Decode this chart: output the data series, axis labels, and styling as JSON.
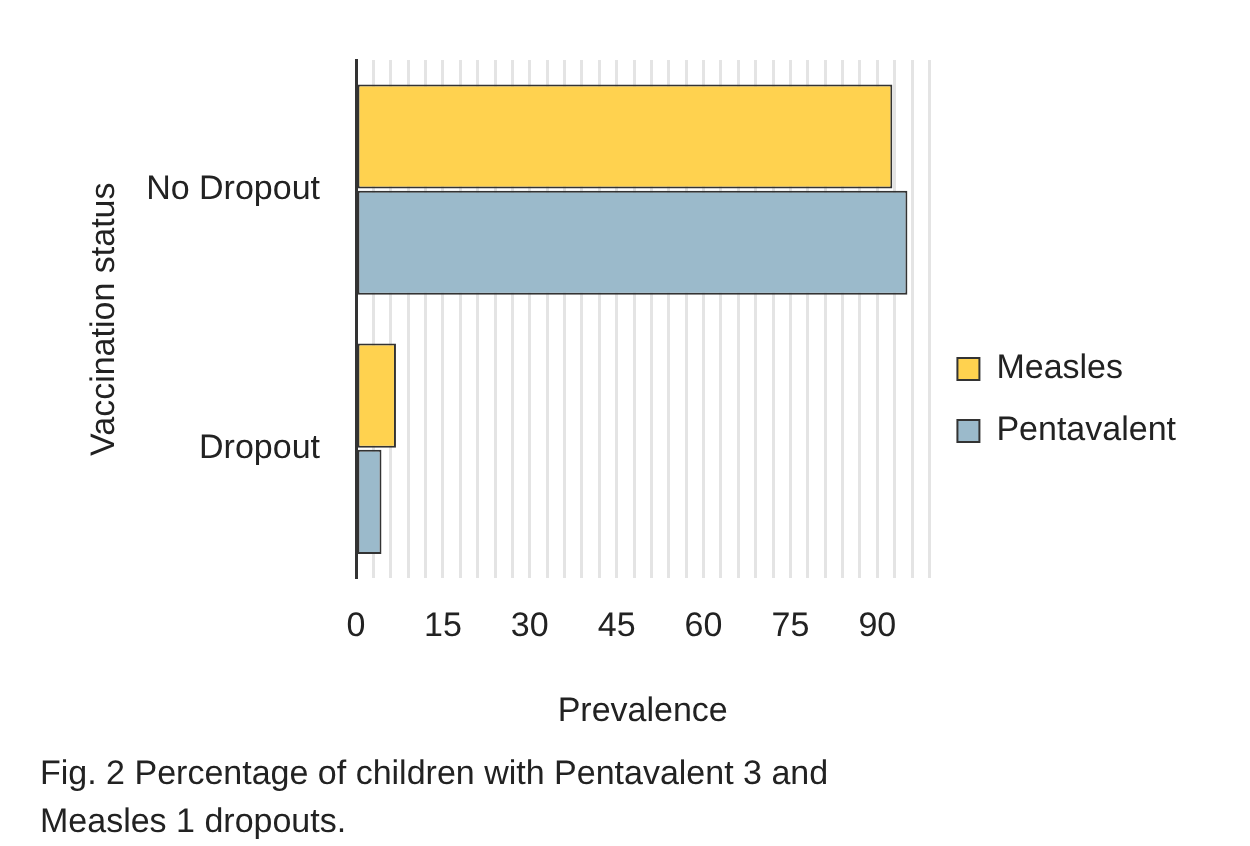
{
  "chart_data": {
    "type": "bar",
    "orientation": "horizontal",
    "xlabel": "Prevalence",
    "ylabel": "Vaccination status",
    "categories": [
      "No Dropout",
      "Dropout"
    ],
    "series": [
      {
        "name": "Measles",
        "color": "#ffd24f",
        "values": [
          92.6,
          6.9
        ]
      },
      {
        "name": "Pentavalent",
        "color": "#9bbacb",
        "values": [
          95.2,
          4.4
        ]
      }
    ],
    "xlim": [
      0,
      99
    ],
    "xticks": [
      0,
      {
        "value": 3,
        "label": null
      },
      {
        "value": 6,
        "label": null
      },
      {
        "value": 9,
        "label": null
      },
      {
        "value": 12,
        "label": null
      },
      15,
      {
        "value": 18,
        "label": null
      },
      {
        "value": 21,
        "label": null
      },
      {
        "value": 24,
        "label": null
      },
      {
        "value": 27,
        "label": null
      },
      30,
      {
        "value": 33,
        "label": null
      },
      {
        "value": 36,
        "label": null
      },
      {
        "value": 39,
        "label": null
      },
      {
        "value": 42,
        "label": null
      },
      45,
      {
        "value": 48,
        "label": null
      },
      {
        "value": 51,
        "label": null
      },
      {
        "value": 54,
        "label": null
      },
      {
        "value": 57,
        "label": null
      },
      60,
      {
        "value": 63,
        "label": null
      },
      {
        "value": 66,
        "label": null
      },
      {
        "value": 69,
        "label": null
      },
      {
        "value": 72,
        "label": null
      },
      75,
      {
        "value": 78,
        "label": null
      },
      {
        "value": 81,
        "label": null
      },
      {
        "value": 84,
        "label": null
      },
      {
        "value": 87,
        "label": null
      },
      90,
      {
        "value": 93,
        "label": null
      },
      {
        "value": 96,
        "label": null
      },
      {
        "value": 99,
        "label": null
      }
    ],
    "grid": "x",
    "legend": "right",
    "annotations": [
      "Fig. 2  Percentage of children with Pentavalent 3 and Measles 1 dropouts."
    ]
  }
}
